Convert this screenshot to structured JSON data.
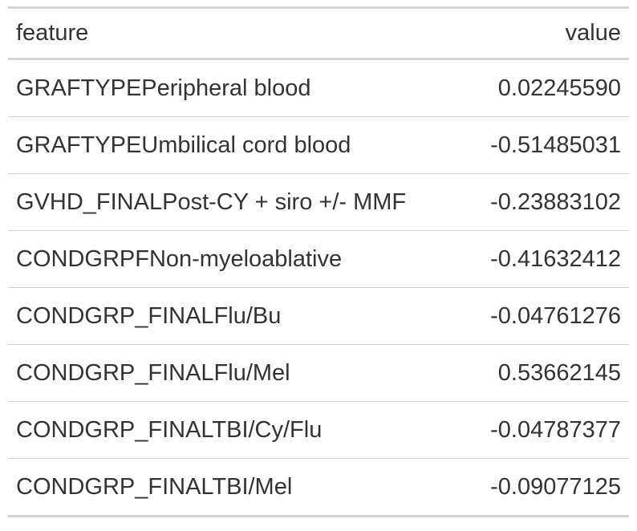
{
  "table": {
    "columns": [
      {
        "key": "feature",
        "label": "feature",
        "align": "left"
      },
      {
        "key": "value",
        "label": "value",
        "align": "right"
      }
    ],
    "rows": [
      {
        "feature": "GRAFTYPEPeripheral blood",
        "value": "0.02245590"
      },
      {
        "feature": "GRAFTYPEUmbilical cord blood",
        "value": "-0.51485031"
      },
      {
        "feature": "GVHD_FINALPost-CY + siro +/- MMF",
        "value": "-0.23883102"
      },
      {
        "feature": "CONDGRPFNon-myeloablative",
        "value": "-0.41632412"
      },
      {
        "feature": "CONDGRP_FINALFlu/Bu",
        "value": "-0.04761276"
      },
      {
        "feature": "CONDGRP_FINALFlu/Mel",
        "value": "0.53662145"
      },
      {
        "feature": "CONDGRP_FINALTBI/Cy/Flu",
        "value": "-0.04787377"
      },
      {
        "feature": "CONDGRP_FINALTBI/Mel",
        "value": "-0.09077125"
      }
    ]
  },
  "colors": {
    "text": "#333333",
    "rule": "#d3d3d3",
    "background": "#ffffff"
  }
}
